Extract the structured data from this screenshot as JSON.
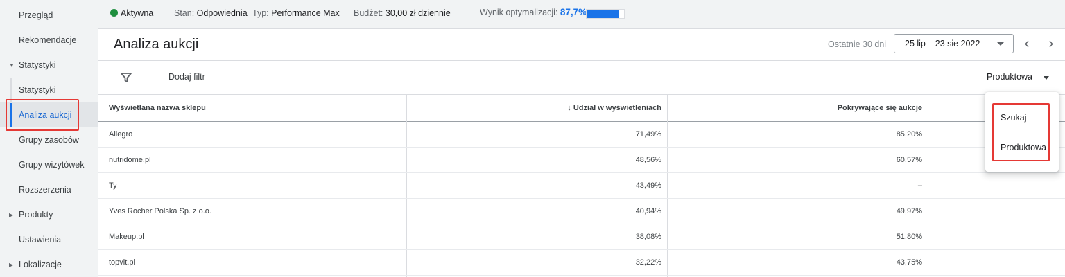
{
  "sidebar": {
    "items": [
      {
        "label": "Przegląd"
      },
      {
        "label": "Rekomendacje"
      },
      {
        "label": "Statystyki"
      },
      {
        "label": "Statystyki"
      },
      {
        "label": "Analiza aukcji"
      },
      {
        "label": "Grupy zasobów"
      },
      {
        "label": "Grupy wizytówek"
      },
      {
        "label": "Rozszerzenia"
      },
      {
        "label": "Produkty"
      },
      {
        "label": "Ustawienia"
      },
      {
        "label": "Lokalizacje"
      }
    ]
  },
  "status": {
    "state": "Aktywna",
    "condition_label": "Stan:",
    "condition_value": "Odpowiednia",
    "type_label": "Typ:",
    "type_value": "Performance Max",
    "budget_label": "Budżet:",
    "budget_value": "30,00 zł dziennie",
    "score_label": "Wynik optymalizacji:",
    "score_value": "87,7%",
    "score_fraction": 0.877,
    "state_color": "#1e8e3e",
    "accent_color": "#1a73e8"
  },
  "header": {
    "title": "Analiza aukcji",
    "range_label": "Ostatnie 30 dni",
    "date_range": "25 lip – 23 sie 2022",
    "prev_glyph": "‹",
    "next_glyph": "›"
  },
  "filter": {
    "add_filter": "Dodaj filtr",
    "segment": "Produktowa"
  },
  "table": {
    "columns": [
      {
        "label": "Wyświetlana nazwa sklepu"
      },
      {
        "label": "↓ Udział w wyświetleniach"
      },
      {
        "label": "Pokrywające się aukcje"
      },
      {
        "label": ""
      }
    ],
    "rows": [
      {
        "name": "Allegro",
        "share": "71,49%",
        "overlap": "85,20%"
      },
      {
        "name": "nutridome.pl",
        "share": "48,56%",
        "overlap": "60,57%"
      },
      {
        "name": "Ty",
        "share": "43,49%",
        "overlap": "–"
      },
      {
        "name": "Yves Rocher Polska Sp. z o.o.",
        "share": "40,94%",
        "overlap": "49,97%"
      },
      {
        "name": "Makeup.pl",
        "share": "38,08%",
        "overlap": "51,80%"
      },
      {
        "name": "topvit.pl",
        "share": "32,22%",
        "overlap": "43,75%"
      }
    ]
  },
  "dropdown": {
    "options": [
      {
        "label": "Szukaj"
      },
      {
        "label": "Produktowa"
      }
    ]
  }
}
